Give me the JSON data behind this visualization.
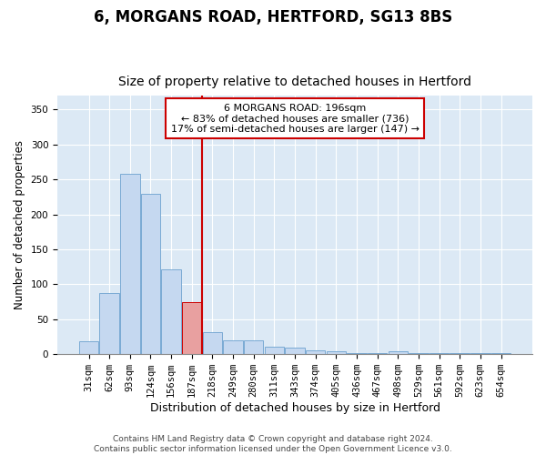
{
  "title": "6, MORGANS ROAD, HERTFORD, SG13 8BS",
  "subtitle": "Size of property relative to detached houses in Hertford",
  "xlabel": "Distribution of detached houses by size in Hertford",
  "ylabel": "Number of detached properties",
  "categories": [
    "31sqm",
    "62sqm",
    "93sqm",
    "124sqm",
    "156sqm",
    "187sqm",
    "218sqm",
    "249sqm",
    "280sqm",
    "311sqm",
    "343sqm",
    "374sqm",
    "405sqm",
    "436sqm",
    "467sqm",
    "498sqm",
    "529sqm",
    "561sqm",
    "592sqm",
    "623sqm",
    "654sqm"
  ],
  "values": [
    19,
    88,
    258,
    230,
    121,
    75,
    31,
    20,
    20,
    11,
    10,
    6,
    4,
    2,
    2,
    4,
    2,
    1,
    1,
    1,
    1
  ],
  "bar_color": "#c5d8f0",
  "bar_edge_color": "#7aaad4",
  "highlight_bar_index": 5,
  "highlight_bar_color": "#e8a0a0",
  "highlight_bar_edge_color": "#cc0000",
  "vline_x": 5.5,
  "vline_color": "#cc0000",
  "annotation_text": "6 MORGANS ROAD: 196sqm\n← 83% of detached houses are smaller (736)\n17% of semi-detached houses are larger (147) →",
  "annotation_box_color": "#ffffff",
  "annotation_box_edge_color": "#cc0000",
  "ylim": [
    0,
    370
  ],
  "yticks": [
    0,
    50,
    100,
    150,
    200,
    250,
    300,
    350
  ],
  "fig_bg_color": "#ffffff",
  "plot_bg_color": "#dce9f5",
  "footer_line1": "Contains HM Land Registry data © Crown copyright and database right 2024.",
  "footer_line2": "Contains public sector information licensed under the Open Government Licence v3.0.",
  "title_fontsize": 12,
  "subtitle_fontsize": 10,
  "tick_fontsize": 7.5,
  "ylabel_fontsize": 8.5,
  "xlabel_fontsize": 9,
  "footer_fontsize": 6.5
}
